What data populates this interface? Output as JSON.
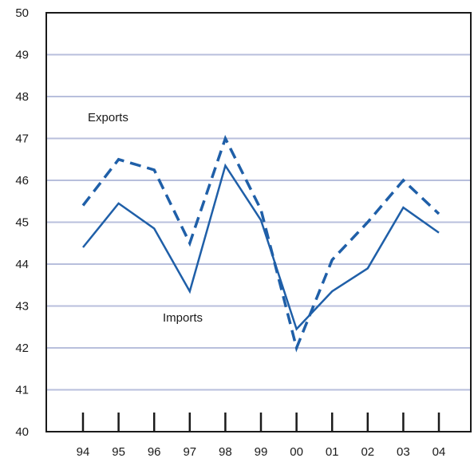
{
  "chart_data": {
    "type": "line",
    "title": "",
    "xlabel": "",
    "ylabel": "",
    "categories": [
      "94",
      "95",
      "96",
      "97",
      "98",
      "99",
      "00",
      "01",
      "02",
      "03",
      "04"
    ],
    "ylim": [
      40,
      50
    ],
    "yticks": [
      "40",
      "41",
      "42",
      "43",
      "44",
      "45",
      "46",
      "47",
      "48",
      "49",
      "50"
    ],
    "grid": true,
    "series": [
      {
        "name": "Exports",
        "style": "dashed",
        "color": "#1f5fa8",
        "values": [
          45.4,
          46.5,
          46.25,
          44.5,
          47.0,
          45.3,
          42.0,
          44.1,
          45.0,
          46.0,
          45.2
        ]
      },
      {
        "name": "Imports",
        "style": "solid",
        "color": "#1f5fa8",
        "values": [
          44.4,
          45.45,
          44.85,
          43.35,
          46.35,
          45.05,
          42.45,
          43.35,
          43.9,
          45.35,
          44.75
        ]
      }
    ],
    "annotations": [
      {
        "text": "Exports",
        "series": "Exports"
      },
      {
        "text": "Imports",
        "series": "Imports"
      }
    ],
    "colors": {
      "grid": "#b8bfdc",
      "axis": "#1a1a1a",
      "line": "#1f5fa8"
    }
  }
}
